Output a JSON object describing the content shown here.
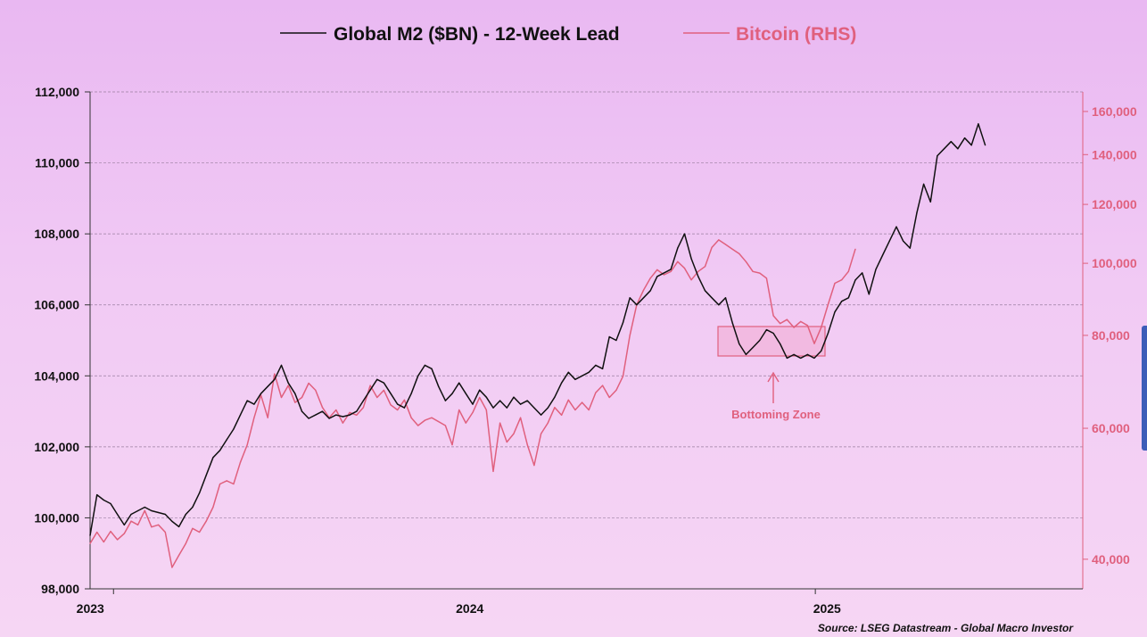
{
  "chart_data": {
    "type": "line",
    "legend": [
      {
        "label": "Global M2 ($BN) - 12-Week Lead",
        "color": "#111111"
      },
      {
        "label": "Bitcoin (RHS)",
        "color": "#e0607e"
      }
    ],
    "x_ticks": [
      "2023",
      "2024",
      "2025"
    ],
    "y_left": {
      "ticks": [
        "98,000",
        "100,000",
        "102,000",
        "104,000",
        "106,000",
        "108,000",
        "110,000",
        "112,000"
      ],
      "range": [
        98000,
        112000
      ]
    },
    "y_right": {
      "scale": "log",
      "ticks": [
        "40,000",
        "60,000",
        "80,000",
        "100,000",
        "120,000",
        "140,000",
        "160,000"
      ],
      "range": [
        36500,
        170000
      ]
    },
    "grid": true,
    "series": [
      {
        "name": "Global M2 ($BN) - 12-Week Lead",
        "axis": "left",
        "color": "#111111",
        "points": [
          [
            "2022-12-08",
            99500
          ],
          [
            "2022-12-15",
            100650
          ],
          [
            "2022-12-22",
            100500
          ],
          [
            "2022-12-29",
            100400
          ],
          [
            "2023-01-05",
            100100
          ],
          [
            "2023-01-12",
            99800
          ],
          [
            "2023-01-19",
            100100
          ],
          [
            "2023-01-26",
            100200
          ],
          [
            "2023-02-02",
            100300
          ],
          [
            "2023-02-09",
            100200
          ],
          [
            "2023-02-16",
            100150
          ],
          [
            "2023-02-23",
            100100
          ],
          [
            "2023-03-02",
            99900
          ],
          [
            "2023-03-09",
            99750
          ],
          [
            "2023-03-16",
            100100
          ],
          [
            "2023-03-23",
            100300
          ],
          [
            "2023-03-30",
            100700
          ],
          [
            "2023-04-06",
            101200
          ],
          [
            "2023-04-13",
            101700
          ],
          [
            "2023-04-20",
            101900
          ],
          [
            "2023-04-27",
            102200
          ],
          [
            "2023-05-04",
            102500
          ],
          [
            "2023-05-11",
            102900
          ],
          [
            "2023-05-18",
            103300
          ],
          [
            "2023-05-25",
            103200
          ],
          [
            "2023-06-01",
            103500
          ],
          [
            "2023-06-08",
            103700
          ],
          [
            "2023-06-15",
            103900
          ],
          [
            "2023-06-22",
            104300
          ],
          [
            "2023-06-29",
            103800
          ],
          [
            "2023-07-06",
            103500
          ],
          [
            "2023-07-13",
            103000
          ],
          [
            "2023-07-20",
            102800
          ],
          [
            "2023-07-27",
            102900
          ],
          [
            "2023-08-03",
            103000
          ],
          [
            "2023-08-10",
            102800
          ],
          [
            "2023-08-17",
            102900
          ],
          [
            "2023-08-24",
            102850
          ],
          [
            "2023-08-31",
            102900
          ],
          [
            "2023-09-07",
            103000
          ],
          [
            "2023-09-14",
            103300
          ],
          [
            "2023-09-21",
            103600
          ],
          [
            "2023-09-28",
            103900
          ],
          [
            "2023-10-05",
            103800
          ],
          [
            "2023-10-12",
            103500
          ],
          [
            "2023-10-19",
            103200
          ],
          [
            "2023-10-26",
            103100
          ],
          [
            "2023-11-02",
            103500
          ],
          [
            "2023-11-09",
            104000
          ],
          [
            "2023-11-16",
            104300
          ],
          [
            "2023-11-23",
            104200
          ],
          [
            "2023-11-30",
            103700
          ],
          [
            "2023-12-07",
            103300
          ],
          [
            "2023-12-14",
            103500
          ],
          [
            "2023-12-21",
            103800
          ],
          [
            "2023-12-28",
            103500
          ],
          [
            "2024-01-04",
            103200
          ],
          [
            "2024-01-11",
            103600
          ],
          [
            "2024-01-18",
            103400
          ],
          [
            "2024-01-25",
            103100
          ],
          [
            "2024-02-01",
            103300
          ],
          [
            "2024-02-08",
            103100
          ],
          [
            "2024-02-15",
            103400
          ],
          [
            "2024-02-22",
            103200
          ],
          [
            "2024-02-29",
            103300
          ],
          [
            "2024-03-07",
            103100
          ],
          [
            "2024-03-14",
            102900
          ],
          [
            "2024-03-21",
            103100
          ],
          [
            "2024-03-28",
            103400
          ],
          [
            "2024-04-04",
            103800
          ],
          [
            "2024-04-11",
            104100
          ],
          [
            "2024-04-18",
            103900
          ],
          [
            "2024-04-25",
            104000
          ],
          [
            "2024-05-02",
            104100
          ],
          [
            "2024-05-09",
            104300
          ],
          [
            "2024-05-16",
            104200
          ],
          [
            "2024-05-23",
            105100
          ],
          [
            "2024-05-30",
            105000
          ],
          [
            "2024-06-06",
            105500
          ],
          [
            "2024-06-13",
            106200
          ],
          [
            "2024-06-20",
            106000
          ],
          [
            "2024-06-27",
            106200
          ],
          [
            "2024-07-04",
            106400
          ],
          [
            "2024-07-11",
            106800
          ],
          [
            "2024-07-18",
            106900
          ],
          [
            "2024-07-25",
            107000
          ],
          [
            "2024-08-01",
            107600
          ],
          [
            "2024-08-08",
            108000
          ],
          [
            "2024-08-15",
            107300
          ],
          [
            "2024-08-22",
            106800
          ],
          [
            "2024-08-29",
            106400
          ],
          [
            "2024-09-05",
            106200
          ],
          [
            "2024-09-12",
            106000
          ],
          [
            "2024-09-19",
            106200
          ],
          [
            "2024-09-26",
            105500
          ],
          [
            "2024-10-03",
            104900
          ],
          [
            "2024-10-10",
            104600
          ],
          [
            "2024-10-17",
            104800
          ],
          [
            "2024-10-24",
            105000
          ],
          [
            "2024-10-31",
            105300
          ],
          [
            "2024-11-07",
            105200
          ],
          [
            "2024-11-14",
            104900
          ],
          [
            "2024-11-21",
            104500
          ],
          [
            "2024-11-28",
            104600
          ],
          [
            "2024-12-05",
            104500
          ],
          [
            "2024-12-12",
            104600
          ],
          [
            "2024-12-19",
            104500
          ],
          [
            "2024-12-26",
            104700
          ],
          [
            "2025-01-02",
            105200
          ],
          [
            "2025-01-09",
            105800
          ],
          [
            "2025-01-16",
            106100
          ],
          [
            "2025-01-23",
            106200
          ],
          [
            "2025-01-30",
            106700
          ],
          [
            "2025-02-06",
            106900
          ],
          [
            "2025-02-13",
            106300
          ],
          [
            "2025-02-20",
            107000
          ],
          [
            "2025-02-27",
            107400
          ],
          [
            "2025-03-06",
            107800
          ],
          [
            "2025-03-13",
            108200
          ],
          [
            "2025-03-20",
            107800
          ],
          [
            "2025-03-27",
            107600
          ],
          [
            "2025-04-03",
            108600
          ],
          [
            "2025-04-10",
            109400
          ],
          [
            "2025-04-17",
            108900
          ],
          [
            "2025-04-24",
            110200
          ],
          [
            "2025-05-01",
            110400
          ],
          [
            "2025-05-08",
            110600
          ],
          [
            "2025-05-15",
            110400
          ],
          [
            "2025-05-22",
            110700
          ],
          [
            "2025-05-29",
            110500
          ],
          [
            "2025-06-05",
            111100
          ],
          [
            "2025-06-12",
            110500
          ]
        ]
      },
      {
        "name": "Bitcoin (RHS)",
        "axis": "right",
        "color": "#e0607e",
        "points": [
          [
            "2022-12-08",
            42000
          ],
          [
            "2022-12-15",
            43500
          ],
          [
            "2022-12-22",
            42200
          ],
          [
            "2022-12-29",
            43600
          ],
          [
            "2023-01-05",
            42500
          ],
          [
            "2023-01-12",
            43300
          ],
          [
            "2023-01-19",
            45000
          ],
          [
            "2023-01-26",
            44500
          ],
          [
            "2023-02-02",
            46500
          ],
          [
            "2023-02-09",
            44200
          ],
          [
            "2023-02-16",
            44500
          ],
          [
            "2023-02-23",
            43500
          ],
          [
            "2023-03-02",
            39000
          ],
          [
            "2023-03-09",
            40500
          ],
          [
            "2023-03-16",
            42000
          ],
          [
            "2023-03-23",
            44000
          ],
          [
            "2023-03-30",
            43500
          ],
          [
            "2023-04-06",
            45000
          ],
          [
            "2023-04-13",
            47000
          ],
          [
            "2023-04-20",
            50500
          ],
          [
            "2023-04-27",
            51000
          ],
          [
            "2023-05-04",
            50500
          ],
          [
            "2023-05-11",
            54000
          ],
          [
            "2023-05-18",
            57000
          ],
          [
            "2023-05-25",
            62000
          ],
          [
            "2023-06-01",
            66500
          ],
          [
            "2023-06-08",
            62000
          ],
          [
            "2023-06-15",
            71000
          ],
          [
            "2023-06-22",
            66000
          ],
          [
            "2023-06-29",
            68500
          ],
          [
            "2023-07-06",
            65000
          ],
          [
            "2023-07-13",
            66000
          ],
          [
            "2023-07-20",
            69000
          ],
          [
            "2023-07-27",
            67500
          ],
          [
            "2023-08-03",
            64000
          ],
          [
            "2023-08-10",
            62000
          ],
          [
            "2023-08-17",
            63500
          ],
          [
            "2023-08-24",
            61000
          ],
          [
            "2023-08-31",
            63000
          ],
          [
            "2023-09-07",
            62500
          ],
          [
            "2023-09-14",
            64000
          ],
          [
            "2023-09-21",
            68500
          ],
          [
            "2023-09-28",
            66000
          ],
          [
            "2023-10-05",
            67500
          ],
          [
            "2023-10-12",
            64500
          ],
          [
            "2023-10-19",
            63500
          ],
          [
            "2023-10-26",
            65500
          ],
          [
            "2023-11-02",
            62000
          ],
          [
            "2023-11-09",
            60500
          ],
          [
            "2023-11-16",
            61500
          ],
          [
            "2023-11-23",
            62000
          ],
          [
            "2023-12-07",
            60500
          ],
          [
            "2023-12-14",
            57000
          ],
          [
            "2023-12-21",
            63500
          ],
          [
            "2023-12-28",
            61000
          ],
          [
            "2024-01-04",
            63000
          ],
          [
            "2024-01-11",
            66000
          ],
          [
            "2024-01-18",
            63500
          ],
          [
            "2024-01-25",
            52500
          ],
          [
            "2024-02-01",
            61000
          ],
          [
            "2024-02-08",
            57500
          ],
          [
            "2024-02-15",
            59000
          ],
          [
            "2024-02-22",
            62000
          ],
          [
            "2024-02-29",
            57000
          ],
          [
            "2024-03-07",
            53500
          ],
          [
            "2024-03-14",
            59000
          ],
          [
            "2024-03-21",
            61000
          ],
          [
            "2024-03-28",
            64000
          ],
          [
            "2024-04-04",
            62500
          ],
          [
            "2024-04-11",
            65500
          ],
          [
            "2024-04-18",
            63500
          ],
          [
            "2024-04-25",
            65000
          ],
          [
            "2024-05-02",
            63500
          ],
          [
            "2024-05-09",
            67000
          ],
          [
            "2024-05-16",
            68500
          ],
          [
            "2024-05-23",
            66000
          ],
          [
            "2024-05-30",
            67500
          ],
          [
            "2024-06-06",
            70500
          ],
          [
            "2024-06-13",
            80000
          ],
          [
            "2024-06-20",
            88000
          ],
          [
            "2024-06-27",
            92000
          ],
          [
            "2024-07-04",
            95500
          ],
          [
            "2024-07-11",
            98000
          ],
          [
            "2024-07-18",
            96500
          ],
          [
            "2024-07-25",
            97500
          ],
          [
            "2024-08-01",
            100500
          ],
          [
            "2024-08-08",
            98500
          ],
          [
            "2024-08-15",
            95000
          ],
          [
            "2024-08-22",
            97500
          ],
          [
            "2024-08-29",
            99000
          ],
          [
            "2024-09-05",
            105000
          ],
          [
            "2024-09-12",
            107500
          ],
          [
            "2024-09-19",
            106000
          ],
          [
            "2024-09-26",
            104500
          ],
          [
            "2024-10-03",
            103000
          ],
          [
            "2024-10-10",
            100500
          ],
          [
            "2024-10-17",
            97500
          ],
          [
            "2024-10-24",
            97000
          ],
          [
            "2024-10-31",
            95500
          ],
          [
            "2024-11-07",
            85000
          ],
          [
            "2024-11-14",
            83000
          ],
          [
            "2024-11-21",
            84000
          ],
          [
            "2024-11-28",
            82000
          ],
          [
            "2024-12-05",
            83500
          ],
          [
            "2024-12-12",
            82500
          ],
          [
            "2024-12-19",
            78000
          ],
          [
            "2024-12-26",
            82000
          ],
          [
            "2025-01-02",
            88000
          ],
          [
            "2025-01-09",
            94000
          ],
          [
            "2025-01-16",
            95000
          ],
          [
            "2025-01-23",
            97500
          ],
          [
            "2025-01-30",
            104500
          ]
        ]
      }
    ],
    "annotations": [
      {
        "label": "Bottoming Zone",
        "color": "#e0607e"
      }
    ],
    "source": "Source: LSEG Datastream - Global Macro Investor"
  }
}
